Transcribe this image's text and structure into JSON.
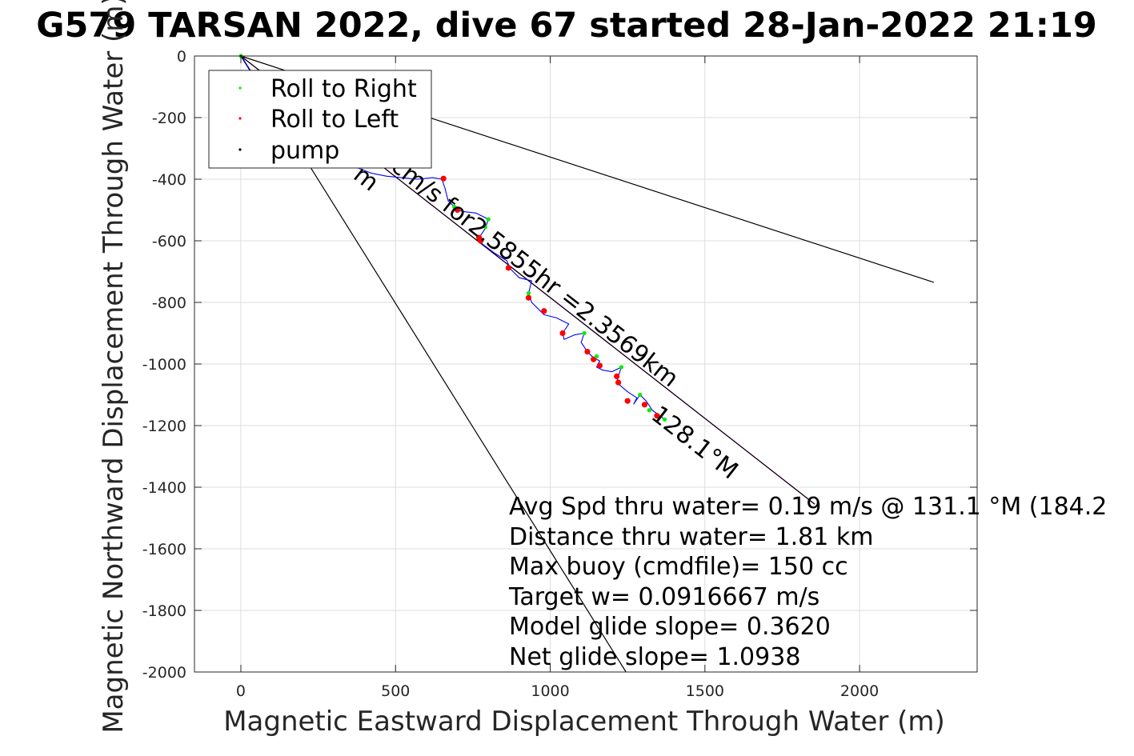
{
  "chart_data": {
    "type": "line",
    "title": "G579 TARSAN 2022, dive 67 started 28-Jan-2022 21:19",
    "xlabel": "Magnetic Eastward Displacement Through Water (m)",
    "ylabel": "Magnetic Northward Displacement Through Water (m)",
    "xlim": [
      -150,
      2380
    ],
    "ylim": [
      -2000,
      0
    ],
    "xticks": [
      0,
      500,
      1000,
      1500,
      2000
    ],
    "yticks": [
      0,
      -200,
      -400,
      -600,
      -800,
      -1000,
      -1200,
      -1400,
      -1600,
      -1800,
      -2000
    ],
    "grid": true,
    "legend": {
      "placement": "top-left",
      "entries": [
        {
          "label": "Roll to Right",
          "color": "#00ee00"
        },
        {
          "label": "Roll to Left",
          "color": "#ff0000"
        },
        {
          "label": "pump",
          "color": "#000000"
        }
      ]
    },
    "reference_lines": [
      {
        "color": "#000000",
        "points": [
          [
            0,
            0
          ],
          [
            2240,
            -735
          ]
        ]
      },
      {
        "color": "#000000",
        "points": [
          [
            0,
            0
          ],
          [
            1245,
            -2000
          ]
        ]
      },
      {
        "color": "#ff00ff",
        "points": [
          [
            0,
            0
          ],
          [
            1855,
            -1455
          ]
        ]
      },
      {
        "color": "#000000",
        "points": [
          [
            0,
            0
          ],
          [
            1855,
            -1455
          ]
        ]
      }
    ],
    "series": [
      {
        "color": "#0000ff",
        "x": [
          0,
          8,
          20,
          40,
          70,
          110,
          160,
          215,
          270,
          320,
          370,
          420,
          470,
          520,
          570,
          620,
          650,
          660,
          670,
          690,
          700,
          720,
          760,
          800,
          790,
          770,
          780,
          820,
          860,
          870,
          880,
          900,
          940,
          930,
          940,
          960,
          980,
          1020,
          1060,
          1040,
          1045,
          1080,
          1110,
          1100,
          1120,
          1140,
          1160,
          1150,
          1170,
          1200,
          1230,
          1220,
          1215,
          1250,
          1280,
          1270,
          1290,
          1310,
          1320,
          1330,
          1350,
          1370
        ],
        "y": [
          0,
          -10,
          -30,
          -60,
          -100,
          -150,
          -200,
          -250,
          -300,
          -330,
          -360,
          -380,
          -390,
          -395,
          -400,
          -395,
          -400,
          -430,
          -470,
          -490,
          -500,
          -505,
          -510,
          -530,
          -560,
          -590,
          -610,
          -640,
          -665,
          -690,
          -700,
          -720,
          -730,
          -770,
          -800,
          -820,
          -840,
          -850,
          -870,
          -900,
          -920,
          -905,
          -900,
          -930,
          -960,
          -980,
          -990,
          -1010,
          -1020,
          -1025,
          -1010,
          -1040,
          -1060,
          -1090,
          -1110,
          -1130,
          -1100,
          -1120,
          -1135,
          -1150,
          -1165,
          -1180
        ]
      }
    ],
    "roll_right": {
      "x": [
        0,
        690,
        800,
        790,
        930,
        1110,
        1150,
        1230,
        1290,
        1320,
        1370
      ],
      "y": [
        0,
        -490,
        -530,
        -555,
        -770,
        -900,
        -975,
        -1010,
        -1100,
        -1150,
        -1180
      ]
    },
    "roll_left": {
      "x": [
        655,
        700,
        770,
        775,
        865,
        930,
        980,
        1040,
        1120,
        1140,
        1160,
        1215,
        1220,
        1250,
        1305,
        1345
      ],
      "y": [
        -398,
        -500,
        -590,
        -600,
        -688,
        -785,
        -828,
        -900,
        -960,
        -985,
        -1005,
        -1040,
        -1060,
        -1120,
        -1132,
        -1168
      ]
    },
    "pump": {
      "x": [
        0,
        5
      ],
      "y": [
        0,
        -5
      ]
    },
    "annotations": {
      "track_label": "cm/s for2.5855hr =2.3569km",
      "track_label_prefix": "m",
      "heading_label": "128.1°M"
    },
    "info": [
      "Avg Spd thru water=  0.19 m/s @ 131.1 °M (184.2",
      "Distance thru water=  1.81 km",
      "Max buoy (cmdfile)= 150 cc",
      "Target w= 0.0916667 m/s",
      "Model glide slope= 0.3620",
      "Net glide slope= 1.0938"
    ]
  }
}
